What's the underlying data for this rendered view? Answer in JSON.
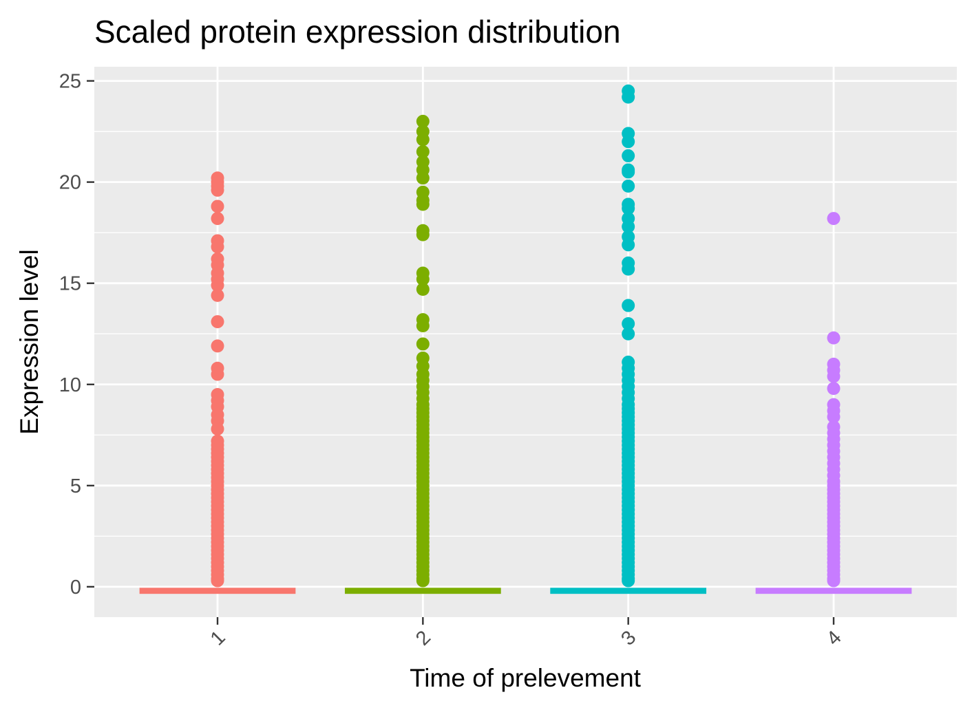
{
  "chart_data": {
    "type": "scatter",
    "title": "Scaled protein expression distribution",
    "xlabel": "Time of prelevement",
    "ylabel": "Expression level",
    "categories": [
      "1",
      "2",
      "3",
      "4"
    ],
    "ylim": [
      -1.5,
      25.7
    ],
    "yticks": [
      0,
      5,
      10,
      15,
      20,
      25
    ],
    "grid": true,
    "legend": "none",
    "series": [
      {
        "category": "1",
        "color": "#F8766D",
        "values": [
          20.2,
          20.0,
          19.8,
          19.6,
          18.8,
          18.2,
          17.1,
          16.8,
          16.2,
          15.9,
          15.5,
          15.2,
          14.9,
          14.4,
          13.1,
          11.9,
          10.8,
          10.5,
          9.5,
          9.2,
          8.9,
          8.5,
          8.2,
          7.8,
          7.2,
          7.0,
          6.8,
          6.6,
          6.4,
          6.2,
          6.0,
          5.8,
          5.6,
          5.4,
          5.2,
          5.0,
          4.8,
          4.6,
          4.4,
          4.2,
          4.0,
          3.8,
          3.6,
          3.4,
          3.2,
          3.0,
          2.8,
          2.6,
          2.4,
          2.2,
          2.0,
          1.8,
          1.6,
          1.4,
          1.2,
          1.0,
          0.8,
          0.6,
          0.4,
          0.3
        ],
        "zero_band": [
          -0.35,
          -0.05
        ]
      },
      {
        "category": "2",
        "color": "#7CAE00",
        "values": [
          23.0,
          22.5,
          22.1,
          21.5,
          21.0,
          20.6,
          20.2,
          19.5,
          19.1,
          18.9,
          17.6,
          17.4,
          15.5,
          15.2,
          14.7,
          13.2,
          12.9,
          12.0,
          11.3,
          10.9,
          10.5,
          10.2,
          9.9,
          9.6,
          9.3,
          9.0,
          8.8,
          8.6,
          8.4,
          8.2,
          8.0,
          7.8,
          7.6,
          7.4,
          7.2,
          7.0,
          6.8,
          6.6,
          6.4,
          6.2,
          6.0,
          5.8,
          5.6,
          5.4,
          5.2,
          5.0,
          4.8,
          4.6,
          4.4,
          4.2,
          4.0,
          3.8,
          3.6,
          3.4,
          3.2,
          3.0,
          2.8,
          2.6,
          2.4,
          2.2,
          2.0,
          1.8,
          1.6,
          1.4,
          1.2,
          1.0,
          0.8,
          0.6,
          0.4,
          0.3
        ],
        "zero_band": [
          -0.35,
          -0.05
        ]
      },
      {
        "category": "3",
        "color": "#00BFC4",
        "values": [
          24.5,
          24.2,
          22.4,
          22.0,
          21.3,
          20.6,
          20.5,
          19.8,
          18.9,
          18.7,
          18.2,
          17.8,
          17.3,
          16.9,
          16.0,
          15.7,
          13.9,
          13.0,
          12.5,
          11.1,
          10.8,
          10.5,
          10.2,
          9.9,
          9.6,
          9.3,
          9.0,
          8.8,
          8.6,
          8.4,
          8.2,
          8.0,
          7.8,
          7.6,
          7.4,
          7.2,
          7.0,
          6.8,
          6.6,
          6.4,
          6.2,
          6.0,
          5.8,
          5.6,
          5.4,
          5.2,
          5.0,
          4.8,
          4.6,
          4.4,
          4.2,
          4.0,
          3.8,
          3.6,
          3.4,
          3.2,
          3.0,
          2.8,
          2.6,
          2.4,
          2.2,
          2.0,
          1.8,
          1.6,
          1.4,
          1.2,
          1.0,
          0.8,
          0.6,
          0.4,
          0.3
        ],
        "zero_band": [
          -0.35,
          -0.05
        ]
      },
      {
        "category": "4",
        "color": "#C77CFF",
        "values": [
          18.2,
          12.3,
          11.0,
          10.7,
          10.4,
          9.8,
          9.0,
          8.7,
          8.4,
          7.9,
          7.6,
          7.3,
          7.0,
          6.7,
          6.4,
          6.1,
          5.8,
          5.5,
          5.2,
          5.0,
          4.8,
          4.6,
          4.4,
          4.2,
          4.0,
          3.8,
          3.6,
          3.4,
          3.2,
          3.0,
          2.8,
          2.6,
          2.4,
          2.2,
          2.0,
          1.8,
          1.6,
          1.4,
          1.2,
          1.0,
          0.8,
          0.6,
          0.4,
          0.3
        ],
        "zero_band": [
          -0.35,
          -0.05
        ]
      }
    ]
  }
}
